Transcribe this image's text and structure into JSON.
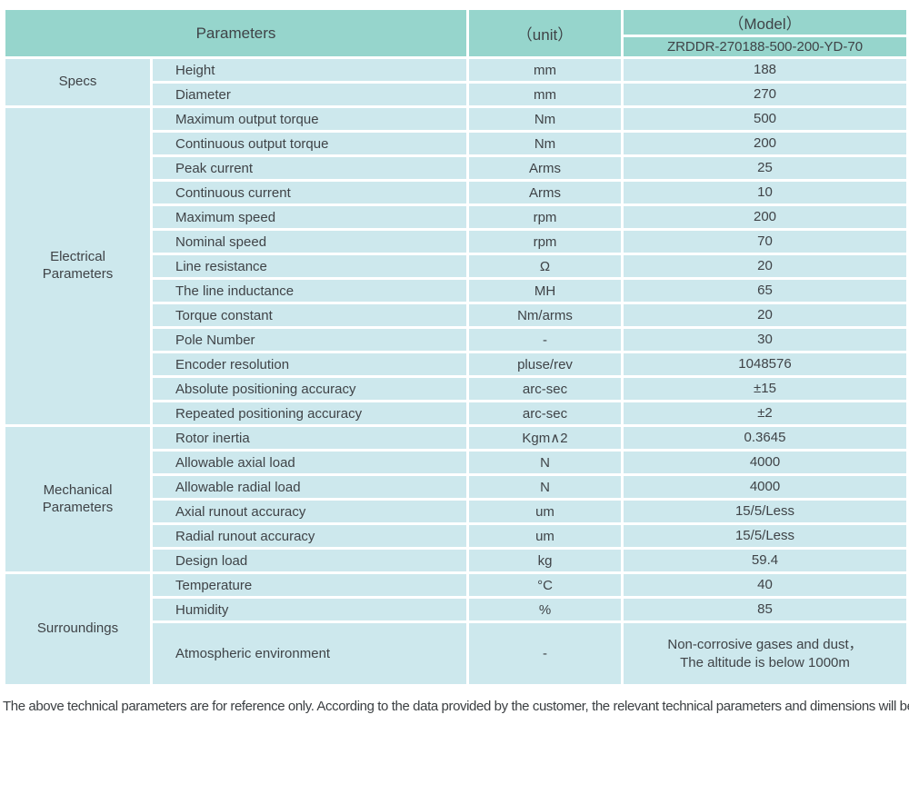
{
  "colors": {
    "header-bg": "#96d5cc",
    "body-bg": "#cde8ed",
    "grid": "#ffffff",
    "text": "#3f4347"
  },
  "table": {
    "header": {
      "parameters_label": "Parameters",
      "unit_label": "（unit）",
      "model_label": "（Model）",
      "model_number": "ZRDDR-270188-500-200-YD-70"
    },
    "sections": [
      {
        "label": "Specs",
        "rows": [
          {
            "param": "Height",
            "unit": "mm",
            "value": "188"
          },
          {
            "param": "Diameter",
            "unit": "mm",
            "value": "270"
          }
        ]
      },
      {
        "label": "Electrical Parameters",
        "rows": [
          {
            "param": "Maximum output torque",
            "unit": "Nm",
            "value": "500"
          },
          {
            "param": "Continuous output torque",
            "unit": "Nm",
            "value": "200"
          },
          {
            "param": "Peak current",
            "unit": "Arms",
            "value": "25"
          },
          {
            "param": "Continuous current",
            "unit": "Arms",
            "value": "10"
          },
          {
            "param": "Maximum speed",
            "unit": "rpm",
            "value": "200"
          },
          {
            "param": "Nominal speed",
            "unit": "rpm",
            "value": "70"
          },
          {
            "param": "Line resistance",
            "unit": "Ω",
            "value": "20"
          },
          {
            "param": "The line inductance",
            "unit": "MH",
            "value": "65"
          },
          {
            "param": "Torque constant",
            "unit": "Nm/arms",
            "value": "20"
          },
          {
            "param": "Pole Number",
            "unit": "-",
            "value": "30"
          },
          {
            "param": "Encoder resolution",
            "unit": "pluse/rev",
            "value": "1048576"
          },
          {
            "param": "Absolute positioning accuracy",
            "unit": "arc-sec",
            "value": "±15"
          },
          {
            "param": "Repeated positioning accuracy",
            "unit": "arc-sec",
            "value": "±2"
          }
        ]
      },
      {
        "label": "Mechanical Parameters",
        "rows": [
          {
            "param": "Rotor inertia",
            "unit": "Kgm∧2",
            "value": "0.3645"
          },
          {
            "param": "Allowable axial load",
            "unit": "N",
            "value": "4000"
          },
          {
            "param": "Allowable radial load",
            "unit": "N",
            "value": "4000"
          },
          {
            "param": "Axial runout accuracy",
            "unit": "um",
            "value": "15/5/Less"
          },
          {
            "param": "Radial runout accuracy",
            "unit": "um",
            "value": "15/5/Less"
          },
          {
            "param": "Design load",
            "unit": "kg",
            "value": "59.4"
          }
        ]
      },
      {
        "label": "Surroundings",
        "rows": [
          {
            "param": "Temperature",
            "unit": "°C",
            "value": "40"
          },
          {
            "param": "Humidity",
            "unit": "%",
            "value": "85"
          },
          {
            "param": "Atmospheric environment",
            "unit": "-",
            "value": "Non-corrosive gases and dust，\nThe altitude is below 1000m"
          }
        ]
      }
    ]
  },
  "footer": {
    "note": "The above technical parameters are for reference only. According to the data provided by the customer, the relevant technical parameters and dimensions will be issued."
  }
}
